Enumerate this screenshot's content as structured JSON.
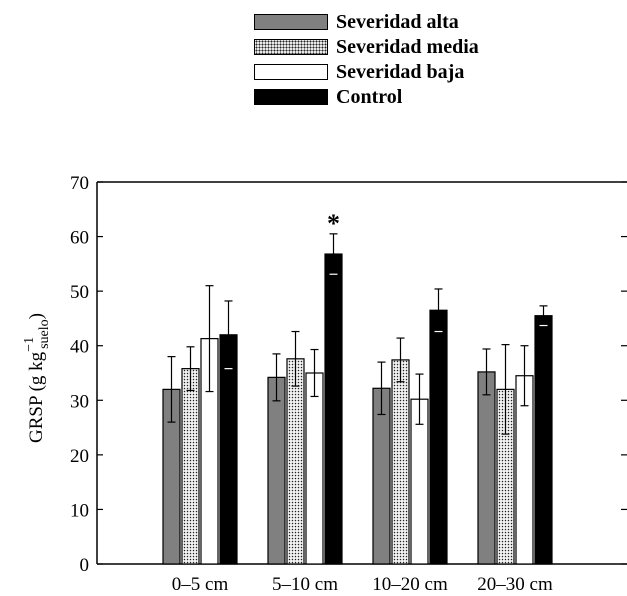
{
  "chart_data": {
    "type": "bar",
    "categories": [
      "0–5 cm",
      "5–10 cm",
      "10–20 cm",
      "20–30 cm"
    ],
    "series": [
      {
        "name": "Severidad alta",
        "values": [
          32.0,
          34.2,
          32.2,
          35.2
        ],
        "errors": [
          6.0,
          4.3,
          4.8,
          4.2
        ],
        "color": "#808080"
      },
      {
        "name": "Severidad media",
        "values": [
          35.8,
          37.6,
          37.4,
          32.0
        ],
        "errors": [
          4.0,
          5.0,
          4.0,
          8.2
        ],
        "color": "#dotted"
      },
      {
        "name": "Severidad baja",
        "values": [
          41.3,
          35.0,
          30.2,
          34.5
        ],
        "errors": [
          9.7,
          4.3,
          4.6,
          5.5
        ],
        "color": "#ffffff"
      },
      {
        "name": "Control",
        "values": [
          42.0,
          56.8,
          46.5,
          45.5
        ],
        "errors": [
          6.2,
          3.7,
          3.9,
          1.8
        ],
        "color": "#000000"
      }
    ],
    "ylabel_main": "GRSP (g kg",
    "ylabel_sup": "−1",
    "ylabel_sub": "suelo",
    "ylabel_close": ")",
    "ylim": [
      0,
      70
    ],
    "yticks": [
      "0",
      "10",
      "20",
      "30",
      "40",
      "50",
      "60",
      "70"
    ],
    "annotations": [
      {
        "text": "*",
        "category": "5–10 cm",
        "series": "Control"
      }
    ],
    "legend_position": "top-center",
    "grid": false
  }
}
